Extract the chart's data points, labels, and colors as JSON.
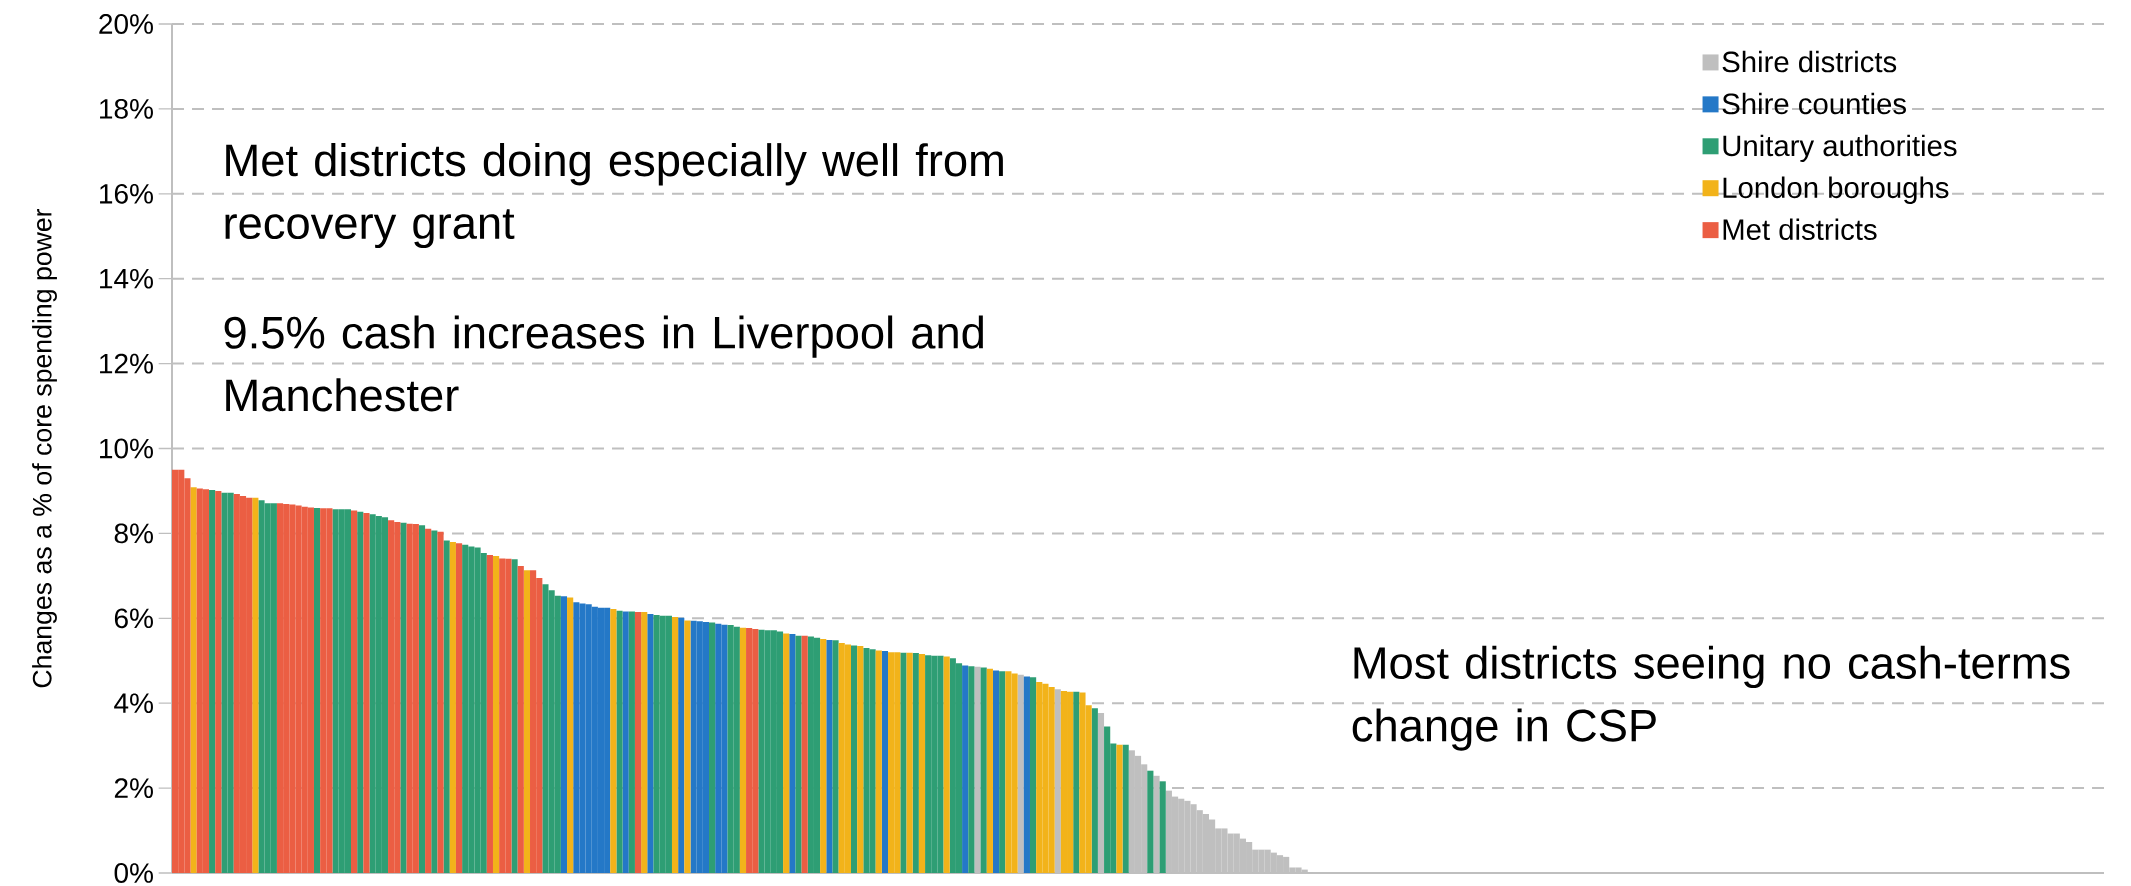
{
  "chart_data": {
    "type": "bar",
    "ylabel": "Changes as a % of core spending power",
    "categories": [
      null,
      null,
      null,
      null,
      null,
      null,
      null,
      null,
      null,
      null,
      null,
      null,
      null,
      null,
      null,
      null,
      null,
      null,
      null,
      null,
      null,
      null,
      null,
      null,
      null,
      null,
      null,
      null,
      null,
      null,
      null,
      null,
      null,
      null,
      null,
      null,
      null,
      null,
      null,
      null,
      null,
      null,
      null,
      null,
      null,
      null,
      null,
      null,
      null,
      null,
      null,
      null,
      null,
      null,
      null,
      null,
      null,
      null,
      null,
      null,
      null,
      null,
      null,
      null,
      null,
      null,
      null,
      null,
      null,
      null,
      null,
      null,
      null,
      null,
      null,
      null,
      null,
      null,
      null,
      null,
      null,
      null,
      null,
      null,
      null,
      null,
      null,
      null,
      null,
      null,
      null,
      null,
      null,
      null,
      null,
      null,
      null,
      null,
      null,
      null,
      null,
      null,
      null,
      null,
      null,
      null,
      null,
      null,
      null,
      null,
      null,
      null,
      null,
      null,
      null,
      null,
      null,
      null,
      null,
      null,
      null,
      null,
      null,
      null,
      null,
      null,
      null,
      null,
      null,
      null,
      null,
      null,
      null,
      null,
      null,
      null,
      null,
      null,
      null,
      null,
      null,
      null,
      null,
      null,
      null,
      null,
      null,
      null,
      null,
      null,
      null,
      null,
      null,
      null,
      null,
      null,
      null,
      null,
      null,
      null,
      null,
      null,
      null,
      null,
      null,
      null,
      null,
      null,
      null,
      null,
      null,
      null,
      null,
      null,
      null,
      null,
      null,
      null,
      null,
      null,
      null,
      null,
      null,
      null,
      null,
      null,
      null,
      null,
      null,
      null,
      null,
      null,
      null,
      null,
      null,
      null,
      null,
      null,
      null,
      null,
      null,
      null,
      null,
      null,
      null,
      null,
      null,
      null,
      null,
      null,
      null,
      null,
      null,
      null,
      null,
      null,
      null,
      null,
      null,
      null,
      null,
      null,
      null,
      null,
      null,
      null,
      null,
      null,
      null,
      null,
      null,
      null,
      null,
      null,
      null,
      null,
      null,
      null,
      null,
      null,
      null,
      null,
      null,
      null,
      null,
      null,
      null,
      null,
      null,
      null,
      null,
      null,
      null,
      null,
      null,
      null,
      null,
      null,
      null,
      null,
      null,
      null,
      null,
      null,
      null,
      null,
      null,
      null,
      null,
      null,
      null,
      null,
      null,
      null,
      null,
      null,
      null,
      null,
      null,
      null,
      null,
      null,
      null,
      null,
      null,
      null,
      null,
      null,
      null,
      null,
      null,
      null,
      null,
      null,
      null,
      null,
      null,
      null,
      null,
      null,
      null,
      null,
      null,
      null,
      null,
      null,
      null,
      null,
      null,
      null,
      null,
      null,
      null
    ],
    "series": [
      {
        "name": "Shire districts",
        "color": "#BFBFBF",
        "values": [
          null,
          null,
          null,
          null,
          null,
          null,
          null,
          null,
          null,
          null,
          null,
          null,
          null,
          null,
          null,
          null,
          null,
          null,
          null,
          null,
          null,
          null,
          null,
          null,
          null,
          null,
          null,
          null,
          null,
          null,
          null,
          null,
          null,
          null,
          null,
          null,
          null,
          null,
          null,
          null,
          null,
          null,
          null,
          null,
          null,
          null,
          null,
          null,
          null,
          null,
          null,
          null,
          null,
          null,
          null,
          null,
          null,
          null,
          null,
          null,
          null,
          null,
          null,
          null,
          null,
          null,
          null,
          null,
          null,
          null,
          null,
          null,
          null,
          null,
          null,
          null,
          null,
          null,
          null,
          null,
          null,
          null,
          null,
          null,
          null,
          null,
          null,
          null,
          null,
          null,
          null,
          null,
          null,
          null,
          null,
          null,
          null,
          null,
          null,
          null,
          null,
          null,
          null,
          null,
          null,
          null,
          null,
          null,
          null,
          null,
          null,
          null,
          null,
          null,
          null,
          null,
          null,
          null,
          null,
          null,
          null,
          null,
          null,
          null,
          null,
          null,
          null,
          null,
          null,
          null,
          4.86,
          null,
          null,
          null,
          null,
          null,
          null,
          4.67,
          null,
          null,
          null,
          null,
          null,
          4.33,
          null,
          null,
          null,
          null,
          null,
          null,
          3.77,
          null,
          null,
          null,
          null,
          2.89,
          2.76,
          2.56,
          null,
          2.29,
          null,
          1.94,
          1.8,
          1.75,
          1.7,
          1.62,
          1.48,
          1.39,
          1.26,
          1.05,
          1.05,
          0.93,
          0.93,
          0.81,
          0.73,
          0.55,
          0.55,
          0.55,
          0.48,
          0.42,
          0.38,
          0.13,
          0.13,
          0.08,
          0.02,
          0,
          0,
          0,
          0,
          0,
          0,
          0,
          0,
          0,
          0,
          0,
          0,
          0,
          0,
          0,
          0,
          0,
          0,
          0,
          0,
          0,
          0,
          0,
          0,
          0,
          0,
          0,
          0,
          0,
          0,
          0,
          0,
          0,
          0,
          0,
          0,
          0,
          0,
          0,
          0,
          0,
          0,
          0,
          0,
          0,
          0,
          0,
          0,
          0,
          0,
          0,
          0,
          0,
          0,
          0,
          0,
          0,
          0,
          0,
          0,
          0,
          0,
          0,
          0,
          0,
          0,
          0,
          0,
          0,
          0,
          0,
          0,
          0,
          0,
          0,
          0,
          0,
          0,
          0,
          0,
          0,
          0,
          0,
          0,
          0,
          0,
          0,
          0,
          0,
          0,
          0,
          0,
          0,
          0,
          0,
          0,
          0,
          0,
          0,
          0,
          0,
          0,
          0,
          0,
          0,
          0,
          0,
          0,
          0,
          0,
          0,
          0,
          0,
          0,
          0,
          0,
          0,
          0,
          0,
          0,
          0,
          0,
          0,
          0,
          0,
          0,
          0,
          0
        ]
      },
      {
        "name": "Shire counties",
        "color": "#2478C7",
        "values": [
          null,
          null,
          null,
          null,
          null,
          null,
          null,
          null,
          null,
          null,
          null,
          null,
          null,
          null,
          null,
          null,
          null,
          null,
          null,
          null,
          null,
          null,
          null,
          null,
          null,
          null,
          null,
          null,
          null,
          null,
          null,
          null,
          null,
          null,
          null,
          null,
          null,
          null,
          null,
          null,
          null,
          null,
          null,
          null,
          null,
          null,
          null,
          null,
          null,
          null,
          null,
          null,
          null,
          null,
          null,
          null,
          null,
          null,
          null,
          null,
          null,
          null,
          null,
          6.52,
          null,
          6.38,
          6.35,
          6.33,
          6.27,
          6.25,
          6.25,
          null,
          null,
          6.16,
          null,
          null,
          null,
          6.1,
          null,
          null,
          null,
          null,
          6.01,
          null,
          5.94,
          5.93,
          5.91,
          null,
          5.87,
          5.85,
          null,
          null,
          null,
          null,
          null,
          null,
          null,
          null,
          null,
          null,
          5.63,
          null,
          null,
          null,
          null,
          null,
          5.49,
          null,
          null,
          null,
          null,
          null,
          null,
          null,
          null,
          5.23,
          null,
          null,
          null,
          null,
          null,
          null,
          null,
          null,
          null,
          null,
          null,
          null,
          4.89,
          null,
          null,
          null,
          null,
          4.77,
          null,
          null,
          null,
          null,
          4.63,
          null,
          null,
          null,
          null,
          null,
          null,
          null,
          null,
          null,
          null,
          null,
          null,
          null,
          null,
          null,
          null,
          null,
          null,
          null,
          null,
          null,
          null,
          null,
          null,
          null,
          null,
          null,
          null,
          null,
          null,
          null,
          null,
          null,
          null,
          null,
          null,
          null,
          null,
          null,
          null,
          null,
          null,
          null,
          null,
          null,
          null,
          null,
          null,
          null,
          null,
          null,
          null,
          null,
          null,
          null,
          null,
          null,
          null,
          null,
          null,
          null,
          null,
          null,
          null,
          null,
          null,
          null,
          null,
          null,
          null,
          null,
          null,
          null,
          null,
          null,
          null,
          null,
          null,
          null,
          null,
          null,
          null,
          null,
          null,
          null,
          null,
          null,
          null,
          null,
          null,
          null,
          null,
          null,
          null,
          null,
          null,
          null,
          null,
          null,
          null,
          null,
          null,
          null,
          null,
          null,
          null,
          null,
          null,
          null,
          null,
          null,
          null,
          null,
          null,
          null,
          null,
          null,
          null,
          null,
          null,
          null,
          null,
          null,
          null,
          null,
          null,
          null,
          null,
          null,
          null,
          null,
          null,
          null,
          null,
          null,
          null,
          null,
          null,
          null,
          null,
          null,
          null,
          null,
          null,
          null,
          null,
          null,
          null,
          null,
          null,
          null,
          null,
          null,
          null,
          null,
          null,
          null,
          null,
          null,
          null,
          null,
          null,
          null,
          null,
          null,
          null,
          null,
          null,
          null,
          null,
          null,
          null,
          null,
          null
        ]
      },
      {
        "name": "Unitary authorities",
        "color": "#2E9E74",
        "values": [
          null,
          null,
          null,
          null,
          null,
          null,
          9.02,
          null,
          8.96,
          8.96,
          null,
          null,
          null,
          null,
          8.78,
          8.71,
          8.71,
          null,
          null,
          null,
          null,
          null,
          null,
          8.6,
          null,
          null,
          8.57,
          8.57,
          8.57,
          null,
          8.51,
          null,
          8.45,
          8.41,
          8.38,
          null,
          null,
          8.25,
          null,
          null,
          8.19,
          null,
          8.07,
          null,
          7.83,
          null,
          null,
          7.73,
          7.69,
          7.67,
          7.54,
          null,
          null,
          null,
          null,
          7.39,
          null,
          null,
          null,
          null,
          6.8,
          6.66,
          6.53,
          null,
          null,
          null,
          null,
          null,
          null,
          null,
          null,
          null,
          6.18,
          null,
          6.16,
          null,
          null,
          null,
          6.08,
          6.06,
          6.06,
          null,
          null,
          null,
          null,
          null,
          null,
          5.9,
          null,
          null,
          5.84,
          5.8,
          null,
          null,
          null,
          5.73,
          5.72,
          5.72,
          5.69,
          null,
          null,
          5.59,
          null,
          5.57,
          5.54,
          null,
          null,
          5.48,
          null,
          null,
          5.36,
          null,
          5.3,
          5.27,
          null,
          null,
          null,
          null,
          5.19,
          null,
          5.18,
          null,
          5.13,
          5.12,
          5.12,
          null,
          5.06,
          4.94,
          null,
          4.87,
          null,
          4.84,
          null,
          null,
          4.75,
          null,
          null,
          null,
          null,
          4.61,
          null,
          null,
          null,
          null,
          null,
          null,
          4.27,
          null,
          null,
          3.88,
          null,
          3.45,
          3.05,
          null,
          3.02,
          null,
          null,
          null,
          2.41,
          null,
          2.16,
          null,
          null,
          null,
          null,
          null,
          null,
          null,
          null,
          null,
          null,
          null,
          null,
          null,
          null,
          null,
          null,
          null,
          null,
          null,
          null,
          null,
          null,
          null,
          null,
          null,
          null,
          null,
          null,
          null,
          null,
          null,
          null,
          null,
          null,
          null,
          null,
          null,
          null,
          null,
          null,
          null,
          null,
          null,
          null,
          null,
          null,
          null,
          null,
          null,
          null,
          null,
          null,
          null,
          null,
          null,
          null,
          null,
          null,
          null,
          null,
          null,
          null,
          null,
          null,
          null,
          null,
          null,
          null,
          null,
          null,
          null,
          null,
          null,
          null,
          null,
          null,
          null,
          null,
          null,
          null,
          null,
          null,
          null,
          null,
          null,
          null,
          null,
          null,
          null,
          null,
          null,
          null,
          null,
          null,
          null,
          null,
          null,
          null,
          null,
          null,
          null,
          null,
          null,
          null,
          null,
          null,
          null,
          null,
          null,
          null,
          null,
          null,
          null,
          null,
          null,
          null,
          null,
          null,
          null,
          null,
          null,
          null,
          null,
          null,
          null,
          null,
          null,
          null,
          null,
          null,
          null,
          null,
          null,
          null,
          null,
          null,
          null,
          null,
          null,
          null,
          null,
          null,
          null,
          null,
          null,
          null,
          null,
          null,
          null,
          null,
          null,
          null
        ]
      },
      {
        "name": "London boroughs",
        "color": "#F2B31A",
        "values": [
          null,
          null,
          null,
          9.09,
          null,
          null,
          null,
          null,
          null,
          null,
          null,
          null,
          null,
          8.84,
          null,
          null,
          null,
          null,
          null,
          null,
          null,
          null,
          null,
          null,
          null,
          null,
          null,
          null,
          null,
          null,
          null,
          null,
          null,
          null,
          null,
          null,
          null,
          null,
          null,
          null,
          null,
          null,
          null,
          null,
          null,
          7.8,
          null,
          null,
          null,
          null,
          null,
          null,
          7.47,
          null,
          null,
          null,
          null,
          7.13,
          null,
          null,
          null,
          null,
          null,
          null,
          6.49,
          null,
          null,
          null,
          null,
          null,
          null,
          6.22,
          null,
          null,
          null,
          null,
          6.15,
          null,
          null,
          null,
          null,
          6.03,
          null,
          5.95,
          null,
          null,
          null,
          null,
          null,
          null,
          null,
          null,
          5.78,
          null,
          null,
          null,
          null,
          null,
          null,
          5.64,
          null,
          null,
          null,
          null,
          null,
          5.51,
          null,
          null,
          5.42,
          5.38,
          null,
          5.35,
          null,
          null,
          5.24,
          null,
          5.2,
          5.2,
          null,
          5.19,
          null,
          5.16,
          null,
          null,
          null,
          5.1,
          null,
          null,
          null,
          null,
          null,
          null,
          4.81,
          null,
          null,
          4.75,
          4.7,
          null,
          null,
          null,
          4.5,
          4.46,
          4.38,
          null,
          4.29,
          4.27,
          null,
          4.25,
          3.95,
          null,
          null,
          null,
          null,
          3.02,
          null,
          null,
          null,
          null,
          null,
          null,
          null,
          null,
          null,
          null,
          null,
          null,
          null,
          null,
          null,
          null,
          null,
          null,
          null,
          null,
          null,
          null,
          null,
          null,
          null,
          null,
          null,
          null,
          null,
          null,
          null,
          null,
          null,
          null,
          null,
          null,
          null,
          null,
          null,
          null,
          null,
          null,
          null,
          null,
          null,
          null,
          null,
          null,
          null,
          null,
          null,
          null,
          null,
          null,
          null,
          null,
          null,
          null,
          null,
          null,
          null,
          null,
          null,
          null,
          null,
          null,
          null,
          null,
          null,
          null,
          null,
          null,
          null,
          null,
          null,
          null,
          null,
          null,
          null,
          null,
          null,
          null,
          null,
          null,
          null,
          null,
          null,
          null,
          null,
          null,
          null,
          null,
          null,
          null,
          null,
          null,
          null,
          null,
          null,
          null,
          null,
          null,
          null,
          null,
          null,
          null,
          null,
          null,
          null,
          null,
          null,
          null,
          null,
          null,
          null,
          null,
          null,
          null,
          null,
          null,
          null,
          null,
          null,
          null,
          null,
          null,
          null,
          null,
          null,
          null,
          null,
          null,
          null,
          null,
          null,
          null,
          null,
          null,
          null,
          null,
          null,
          null,
          null,
          null,
          null,
          null,
          null,
          null,
          null,
          null,
          null,
          null,
          null,
          null,
          null,
          null,
          null,
          null,
          null
        ]
      },
      {
        "name": "Met districts",
        "color": "#EB5E43",
        "values": [
          9.5,
          9.5,
          9.3,
          null,
          9.06,
          9.04,
          null,
          9.0,
          null,
          null,
          8.93,
          8.88,
          8.84,
          null,
          null,
          null,
          null,
          8.71,
          8.69,
          8.68,
          8.66,
          8.63,
          8.61,
          null,
          8.59,
          8.59,
          null,
          null,
          null,
          8.54,
          null,
          8.48,
          null,
          null,
          null,
          8.31,
          8.27,
          null,
          8.23,
          8.22,
          null,
          8.11,
          null,
          8.04,
          null,
          null,
          7.77,
          null,
          null,
          null,
          null,
          7.49,
          null,
          7.41,
          7.4,
          null,
          7.23,
          null,
          7.13,
          6.95,
          null,
          null,
          null,
          null,
          null,
          null,
          null,
          null,
          null,
          null,
          null,
          null,
          null,
          null,
          null,
          6.15,
          null,
          null,
          null,
          null,
          null,
          null,
          null,
          null,
          null,
          null,
          null,
          null,
          null,
          null,
          null,
          null,
          null,
          5.77,
          5.75,
          null,
          null,
          null,
          null,
          null,
          null,
          null,
          5.59,
          null,
          null,
          null,
          null,
          null,
          null,
          null,
          null,
          null,
          null,
          null,
          null,
          null,
          null,
          null,
          null,
          null,
          null,
          null,
          null,
          null,
          null,
          null,
          null,
          null,
          null,
          null,
          null,
          null,
          null,
          null,
          null,
          null,
          null,
          null,
          null,
          null,
          null,
          null,
          null,
          null,
          null,
          null,
          null,
          null,
          null,
          null,
          null,
          null,
          null,
          null,
          null,
          null,
          null,
          null,
          null,
          null,
          null,
          null,
          null,
          null,
          null,
          null,
          null,
          null,
          null,
          null,
          null,
          null,
          null,
          null,
          null,
          null,
          null,
          null,
          null,
          null,
          null,
          null,
          null,
          null,
          null,
          null,
          null,
          null,
          null,
          null,
          null,
          null,
          null,
          null,
          null,
          null,
          null,
          null,
          null,
          null,
          null,
          null,
          null,
          null,
          null,
          null,
          null,
          null,
          null,
          null,
          null,
          null,
          null,
          null,
          null,
          null,
          null,
          null,
          null,
          null,
          null,
          null,
          null,
          null,
          null,
          null,
          null,
          null,
          null,
          null,
          null,
          null,
          null,
          null,
          null,
          null,
          null,
          null,
          null,
          null,
          null,
          null,
          null,
          null,
          null,
          null,
          null,
          null,
          null,
          null,
          null,
          null,
          null,
          null,
          null,
          null,
          null,
          null,
          null,
          null,
          null,
          null,
          null,
          null,
          null,
          null,
          null,
          null,
          null,
          null,
          null,
          null,
          null,
          null,
          null,
          null,
          null,
          null,
          null,
          null,
          null,
          null,
          null,
          null,
          null,
          null,
          null,
          null,
          null,
          null,
          null,
          null,
          null,
          null,
          null,
          null,
          null,
          null,
          null,
          null,
          null,
          null,
          null,
          null,
          null,
          null,
          null,
          null,
          null,
          null,
          null,
          null,
          null
        ]
      }
    ],
    "ylim": [
      0,
      20
    ],
    "yticks": [
      {
        "value": 0,
        "label": "0%"
      },
      {
        "value": 2,
        "label": "2%"
      },
      {
        "value": 4,
        "label": "4%"
      },
      {
        "value": 6,
        "label": "6%"
      },
      {
        "value": 8,
        "label": "8%"
      },
      {
        "value": 10,
        "label": "10%"
      },
      {
        "value": 12,
        "label": "12%"
      },
      {
        "value": 14,
        "label": "14%"
      },
      {
        "value": 16,
        "label": "16%"
      },
      {
        "value": 18,
        "label": "18%"
      },
      {
        "value": 20,
        "label": "20%"
      }
    ],
    "grid": "y",
    "legend": "top right",
    "annotations": [
      "Met districts doing especially well from recovery grant",
      "9.5% cash increases in Liverpool and Manchester",
      "Most districts seeing no cash-terms change in CSP"
    ]
  }
}
